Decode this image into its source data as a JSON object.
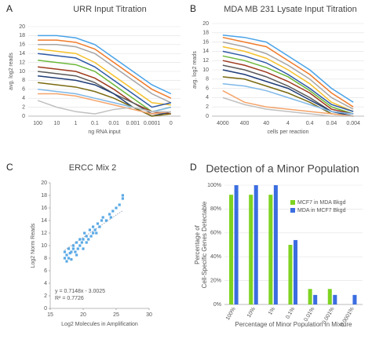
{
  "chart_data": [
    {
      "type": "line",
      "panel_label": "A",
      "title": "URR Input Titration",
      "xlabel": "ng RNA input",
      "ylabel": "avg. log2 reads",
      "categories": [
        "100",
        "10",
        "1",
        "0.1",
        "0.01",
        "0.001",
        "0.0001",
        "0"
      ],
      "ylim": [
        0,
        20
      ],
      "yticks": [
        0,
        2,
        4,
        6,
        8,
        10,
        12,
        14,
        16,
        18,
        20
      ],
      "grid": true,
      "series": [
        {
          "color": "#4aa3e8",
          "values": [
            18,
            18,
            17.5,
            16,
            13,
            10,
            7,
            5
          ]
        },
        {
          "color": "#f07b2a",
          "values": [
            17,
            17,
            16.5,
            15,
            12,
            9,
            6,
            4
          ]
        },
        {
          "color": "#a5a5a5",
          "values": [
            16,
            16,
            15.5,
            14,
            11,
            8,
            5,
            3
          ]
        },
        {
          "color": "#f5c02c",
          "values": [
            15,
            14.5,
            14,
            12,
            9,
            6,
            3,
            2.5
          ]
        },
        {
          "color": "#2e5aa8",
          "values": [
            14,
            13.5,
            13,
            11,
            8,
            5,
            2,
            3
          ]
        },
        {
          "color": "#6cb83a",
          "values": [
            12.5,
            12,
            11.5,
            10,
            7,
            4,
            1,
            2
          ]
        },
        {
          "color": "#9e3b1e",
          "values": [
            11,
            10.5,
            10,
            8.5,
            6,
            3,
            1,
            0.5
          ]
        },
        {
          "color": "#5a5a5a",
          "values": [
            10,
            9.5,
            9,
            7.5,
            5,
            3,
            0.5,
            1
          ]
        },
        {
          "color": "#1f3d78",
          "values": [
            9,
            8.5,
            8,
            7,
            5,
            2,
            0,
            1
          ]
        },
        {
          "color": "#7a6a10",
          "values": [
            7.5,
            7,
            6.5,
            5.5,
            4,
            2,
            0,
            0.5
          ]
        },
        {
          "color": "#7fb8e8",
          "values": [
            6,
            5.5,
            5,
            4,
            3,
            2,
            1,
            2
          ]
        },
        {
          "color": "#f4a46a",
          "values": [
            5,
            5,
            4.5,
            3.5,
            2.5,
            1.5,
            0.5,
            1
          ]
        },
        {
          "color": "#c0c0c0",
          "values": [
            3.5,
            2,
            1,
            0.5,
            1.5,
            2,
            1,
            1
          ]
        }
      ]
    },
    {
      "type": "line",
      "panel_label": "B",
      "title": "MDA MB 231 Lysate Input Titration",
      "xlabel": "cells per reaction",
      "ylabel": "avg. log2 reads",
      "categories": [
        "4000",
        "400",
        "40",
        "4",
        "0.4",
        "0.04",
        "0.004"
      ],
      "ylim": [
        0,
        20
      ],
      "yticks": [
        0,
        2,
        4,
        6,
        8,
        10,
        12,
        14,
        16,
        18,
        20
      ],
      "grid": true,
      "series": [
        {
          "color": "#4aa3e8",
          "values": [
            17.5,
            17,
            16,
            13,
            10,
            6,
            3
          ]
        },
        {
          "color": "#f07b2a",
          "values": [
            17,
            16,
            15,
            12,
            9,
            5,
            2
          ]
        },
        {
          "color": "#a5a5a5",
          "values": [
            16,
            15,
            13.5,
            11,
            8,
            4,
            1.5
          ]
        },
        {
          "color": "#f5c02c",
          "values": [
            15,
            14,
            12.5,
            10,
            7,
            3,
            1
          ]
        },
        {
          "color": "#2e5aa8",
          "values": [
            14,
            13,
            11.5,
            9,
            6,
            2.5,
            1
          ]
        },
        {
          "color": "#6cb83a",
          "values": [
            13,
            12,
            10.5,
            8.5,
            5.5,
            2,
            0.5
          ]
        },
        {
          "color": "#9e3b1e",
          "values": [
            12,
            11,
            9.5,
            7.5,
            5,
            1.5,
            0.5
          ]
        },
        {
          "color": "#5a5a5a",
          "values": [
            11,
            10,
            8.5,
            6.5,
            4,
            1,
            0.5
          ]
        },
        {
          "color": "#1f3d78",
          "values": [
            10,
            9,
            7.5,
            6,
            3.5,
            1,
            0
          ]
        },
        {
          "color": "#7a6a10",
          "values": [
            8.5,
            8,
            6.5,
            5,
            3,
            0.5,
            0
          ]
        },
        {
          "color": "#7fb8e8",
          "values": [
            7,
            6.5,
            5.5,
            4,
            2.5,
            1,
            0.5
          ]
        },
        {
          "color": "#f4a46a",
          "values": [
            5.5,
            3,
            2,
            1.5,
            1,
            0.5,
            0
          ]
        },
        {
          "color": "#c0c0c0",
          "values": [
            4,
            2.5,
            1.5,
            1,
            0.5,
            0,
            0
          ]
        }
      ]
    },
    {
      "type": "scatter",
      "panel_label": "C",
      "title": "ERCC Mix 2",
      "xlabel": "Log2 Molecules in Amplification",
      "ylabel": "Log2 Norm Reads",
      "annotations": [
        "y = 0.7148x - 3.0025",
        "R² = 0.7726"
      ],
      "trendline": {
        "slope": 0.7148,
        "intercept": -3.0025
      },
      "color": "#5aa9e6",
      "xlim": [
        15,
        30
      ],
      "xticks": [
        15,
        20,
        25,
        30
      ],
      "ylim": [
        0,
        20
      ],
      "yticks": [
        0,
        2,
        4,
        6,
        8,
        10,
        12,
        14,
        16,
        18,
        20
      ],
      "x": [
        17.2,
        17.2,
        17.5,
        17.5,
        17.8,
        17.8,
        18.0,
        18.2,
        18.2,
        18.5,
        18.5,
        18.8,
        19.0,
        19.0,
        19.2,
        19.5,
        19.5,
        19.8,
        20.0,
        20.0,
        20.2,
        20.5,
        20.5,
        20.8,
        21.0,
        21.2,
        21.5,
        21.5,
        21.8,
        22.0,
        22.2,
        22.5,
        22.8,
        23.0,
        23.5,
        24.0,
        24.2,
        24.5,
        25.0,
        25.5,
        26.0,
        26.0
      ],
      "values": [
        9,
        8,
        8.5,
        7.5,
        9.5,
        8,
        8.8,
        9,
        7.8,
        9.5,
        10,
        9,
        8.5,
        10.5,
        9.5,
        10,
        11,
        10.5,
        9.5,
        11,
        12,
        10.5,
        11.5,
        11,
        12.5,
        11.5,
        12,
        13,
        12.5,
        12,
        13.5,
        13,
        14,
        14.5,
        14,
        15,
        14.5,
        15.5,
        16,
        16.5,
        17.5,
        18
      ]
    },
    {
      "type": "bar",
      "panel_label": "D",
      "title": "Detection of a Minor Population",
      "xlabel": "Percentage of Minor Population in Mixture",
      "ylabel_lines": [
        "Percentage of",
        "Cell-Specific Genes Detectable"
      ],
      "categories": [
        "100%",
        "10%",
        "1%",
        "0.1%",
        "0.01%",
        "0.001%",
        "0.0001%"
      ],
      "ylim": [
        0,
        100
      ],
      "yticks": [
        {
          "value": 0,
          "label": "0%"
        },
        {
          "value": 20,
          "label": "20%"
        },
        {
          "value": 40,
          "label": "40%"
        },
        {
          "value": 60,
          "label": "60%"
        },
        {
          "value": 80,
          "label": "80%"
        },
        {
          "value": 100,
          "label": "100%"
        }
      ],
      "grid": true,
      "legend": "top-right",
      "series": [
        {
          "name": "MCF7 in MDA Bkgd",
          "color": "#7ed321",
          "values": [
            92,
            92,
            92,
            50,
            13,
            13,
            0
          ]
        },
        {
          "name": "MDA in MCF7 Bkgd",
          "color": "#3b6de0",
          "values": [
            100,
            100,
            100,
            54,
            8,
            8,
            8
          ]
        }
      ]
    }
  ]
}
